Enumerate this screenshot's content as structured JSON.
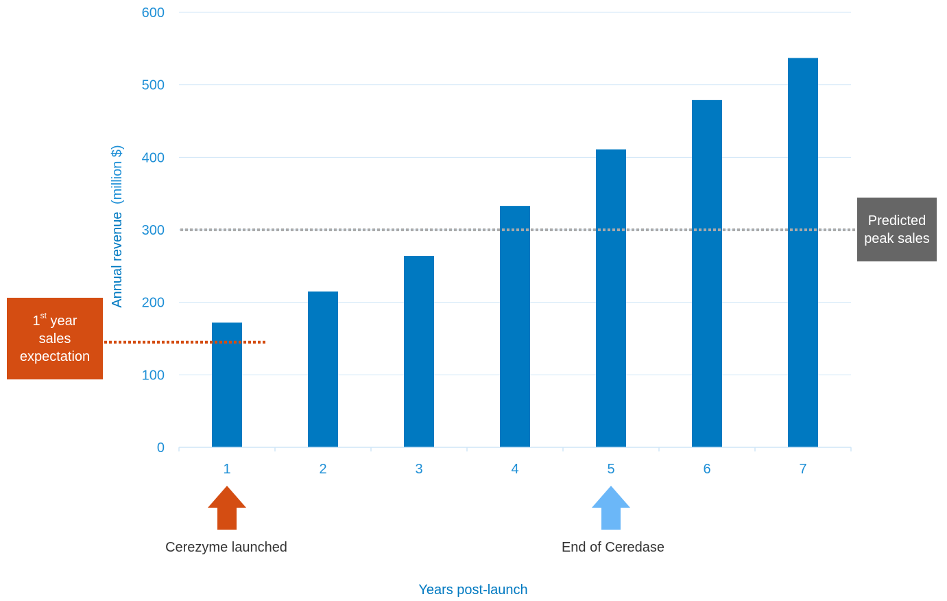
{
  "chart_data": {
    "type": "bar",
    "xlabel": "Years post-launch",
    "ylabel_main": "Annual revenue",
    "ylabel_unit": "(million $)",
    "categories": [
      "1",
      "2",
      "3",
      "4",
      "5",
      "6",
      "7"
    ],
    "values": [
      172,
      215,
      264,
      333,
      411,
      479,
      537
    ],
    "ylim": [
      0,
      600
    ],
    "yticks": [
      "0",
      "100",
      "200",
      "300",
      "400",
      "500",
      "600"
    ],
    "grid": true,
    "bar_color": "#0079c1",
    "axis_text_color": "#1e8fd6",
    "reference_lines": [
      {
        "value": 300,
        "color": "#aaaaaa"
      },
      {
        "value": 145,
        "color": "#d44d12"
      }
    ],
    "annotations": {
      "first_year": {
        "sup_part1": "1",
        "sup_part2": "st",
        "line1_rest": " year",
        "line2": "sales",
        "line3": "expectation",
        "color": "#d44d12"
      },
      "peak": {
        "line1": "Predicted",
        "line2": "peak sales",
        "color": "#666666"
      },
      "launch": {
        "label": "Cerezyme launched",
        "category": "1",
        "color": "#d44d12"
      },
      "end": {
        "label": "End of Ceredase",
        "category": "5",
        "color": "#6bb7f8"
      }
    }
  }
}
